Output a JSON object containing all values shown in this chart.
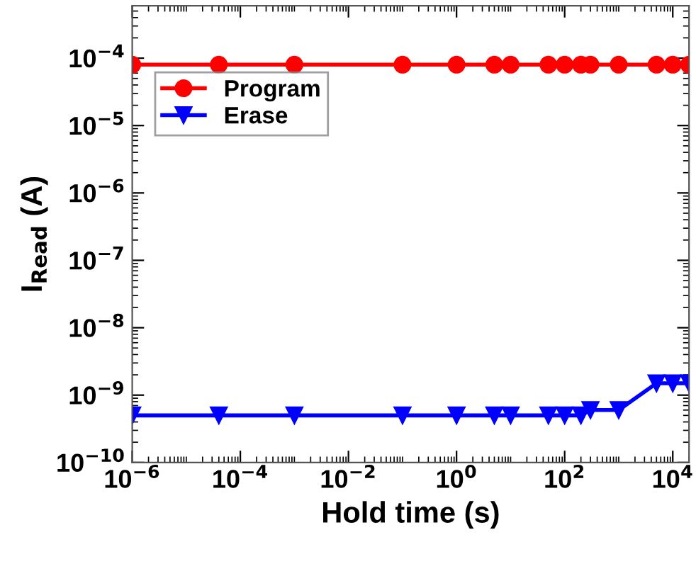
{
  "chart_data": {
    "type": "line",
    "xlabel": "Hold time (s)",
    "ylabel": "I$_{Read}$ (A)",
    "log": "xy",
    "x": [
      1e-06,
      4e-05,
      0.001,
      0.1,
      1,
      5,
      10,
      50,
      100,
      200,
      300,
      1000,
      5000,
      10000,
      20000
    ],
    "series": [
      {
        "name": "Program",
        "color": "#ff0000",
        "marker": "circle",
        "values": [
          8e-05,
          8e-05,
          8e-05,
          8e-05,
          8e-05,
          8e-05,
          8e-05,
          8e-05,
          8e-05,
          8e-05,
          8e-05,
          8e-05,
          8e-05,
          8e-05,
          8e-05
        ]
      },
      {
        "name": "Erase",
        "color": "#0000ff",
        "marker": "triangle",
        "values": [
          5e-10,
          5e-10,
          5e-10,
          5e-10,
          5e-10,
          5e-10,
          5e-10,
          5e-10,
          5e-10,
          5e-10,
          6e-10,
          6e-10,
          1.5e-09,
          1.5e-09,
          1.5e-09
        ]
      }
    ],
    "xlim": [
      1e-06,
      20000.0
    ],
    "ylim": [
      1e-10,
      0.0006
    ],
    "xticks": [
      {
        "value": 1e-06,
        "label": "10$^{−6}$"
      },
      {
        "value": 0.0001,
        "label": "10$^{−4}$"
      },
      {
        "value": 0.01,
        "label": "10$^{−2}$"
      },
      {
        "value": 1,
        "label": "10$^{0}$"
      },
      {
        "value": 100,
        "label": "10$^{2}$"
      },
      {
        "value": 10000,
        "label": "10$^{4}$"
      }
    ],
    "yticks": [
      {
        "value": 1e-10,
        "label": "10$^{−10}$"
      },
      {
        "value": 1e-09,
        "label": "10$^{−9}$"
      },
      {
        "value": 1e-08,
        "label": "10$^{−8}$"
      },
      {
        "value": 1e-07,
        "label": "10$^{−7}$"
      },
      {
        "value": 1e-06,
        "label": "10$^{−6}$"
      },
      {
        "value": 1e-05,
        "label": "10$^{−5}$"
      },
      {
        "value": 0.0001,
        "label": "10$^{−4}$"
      }
    ],
    "legend": "top left",
    "grid": false
  }
}
